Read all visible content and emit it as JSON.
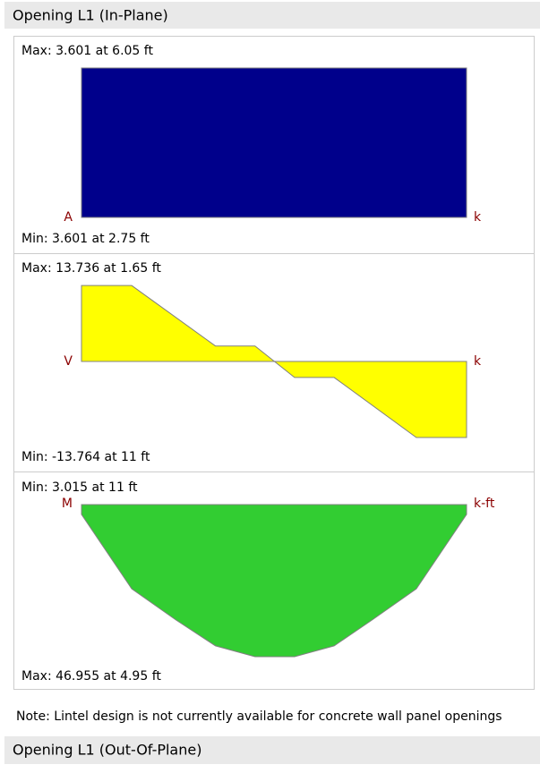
{
  "sections": [
    {
      "title": "Opening L1 (In-Plane)",
      "xlim": [
        0,
        12.65
      ],
      "diagrams": [
        {
          "top_label": "Max: 3.601 at 6.05 ft",
          "left_label": "A",
          "unit": "k",
          "bottom_label": "Min: 3.601 at 2.75 ft",
          "color": "#00008b",
          "invert": false,
          "x": [
            0,
            0,
            12.65,
            12.65
          ],
          "values": [
            0,
            3.601,
            3.601,
            0
          ]
        },
        {
          "top_label": "Max: 13.736 at 1.65 ft",
          "left_label": "V",
          "unit": "k",
          "bottom_label": "Min: -13.764 at 11 ft",
          "color": "#ffff00",
          "invert": false,
          "x": [
            0,
            0,
            1.65,
            4.4,
            5.7,
            7.0,
            8.3,
            11,
            12.65,
            12.65
          ],
          "values": [
            0,
            13.736,
            13.736,
            2.8,
            2.8,
            -2.9,
            -2.9,
            -13.764,
            -13.764,
            0
          ]
        },
        {
          "top_label": "Min: 3.015 at 11 ft",
          "left_label": "M",
          "unit": "k-ft",
          "bottom_label": "Max: 46.955 at 4.95 ft",
          "color": "#32cd32",
          "invert": true,
          "x": [
            0,
            0,
            1.65,
            3.1,
            4.4,
            5.7,
            7.0,
            8.3,
            9.55,
            11,
            12.65,
            12.65
          ],
          "values": [
            0,
            3.015,
            26,
            35.6,
            43.6,
            46.955,
            46.955,
            43.6,
            35.6,
            26,
            3.015,
            0
          ]
        }
      ],
      "note": "Note: Lintel design is not currently available for concrete wall panel openings"
    },
    {
      "title": "Opening L1 (Out-Of-Plane)"
    }
  ]
}
